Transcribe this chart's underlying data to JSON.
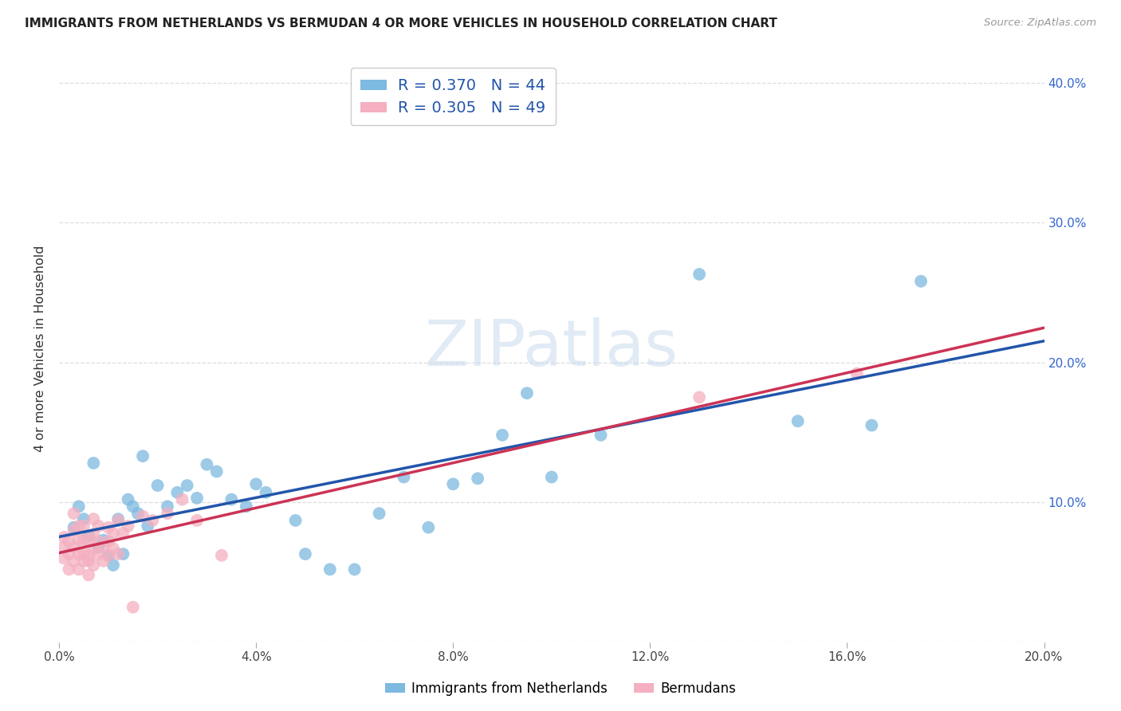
{
  "title": "IMMIGRANTS FROM NETHERLANDS VS BERMUDAN 4 OR MORE VEHICLES IN HOUSEHOLD CORRELATION CHART",
  "source": "Source: ZipAtlas.com",
  "ylabel": "4 or more Vehicles in Household",
  "xlim": [
    0.0,
    0.2
  ],
  "ylim": [
    0.0,
    0.42
  ],
  "xticks": [
    0.0,
    0.04,
    0.08,
    0.12,
    0.16,
    0.2
  ],
  "yticks": [
    0.0,
    0.1,
    0.2,
    0.3,
    0.4
  ],
  "xtick_labels": [
    "0.0%",
    "4.0%",
    "8.0%",
    "12.0%",
    "16.0%",
    "20.0%"
  ],
  "ytick_labels_right": [
    "",
    "10.0%",
    "20.0%",
    "30.0%",
    "40.0%"
  ],
  "blue_color": "#7db9e0",
  "pink_color": "#f4afc0",
  "blue_line_color": "#2255aa",
  "pink_line_color": "#cc3355",
  "blue_scatter_x": [
    0.003,
    0.004,
    0.005,
    0.006,
    0.007,
    0.008,
    0.009,
    0.01,
    0.011,
    0.012,
    0.013,
    0.014,
    0.015,
    0.016,
    0.017,
    0.018,
    0.02,
    0.022,
    0.024,
    0.026,
    0.028,
    0.03,
    0.032,
    0.035,
    0.038,
    0.04,
    0.042,
    0.048,
    0.05,
    0.055,
    0.06,
    0.065,
    0.07,
    0.075,
    0.08,
    0.085,
    0.09,
    0.095,
    0.1,
    0.11,
    0.13,
    0.15,
    0.165,
    0.175
  ],
  "blue_scatter_y": [
    0.082,
    0.097,
    0.088,
    0.076,
    0.128,
    0.068,
    0.073,
    0.062,
    0.055,
    0.088,
    0.063,
    0.102,
    0.097,
    0.092,
    0.133,
    0.083,
    0.112,
    0.097,
    0.107,
    0.112,
    0.103,
    0.127,
    0.122,
    0.102,
    0.097,
    0.113,
    0.107,
    0.087,
    0.063,
    0.052,
    0.052,
    0.092,
    0.118,
    0.082,
    0.113,
    0.117,
    0.148,
    0.178,
    0.118,
    0.148,
    0.263,
    0.158,
    0.155,
    0.258
  ],
  "pink_scatter_x": [
    0.001,
    0.001,
    0.001,
    0.002,
    0.002,
    0.002,
    0.003,
    0.003,
    0.003,
    0.003,
    0.004,
    0.004,
    0.004,
    0.004,
    0.005,
    0.005,
    0.005,
    0.005,
    0.006,
    0.006,
    0.006,
    0.006,
    0.007,
    0.007,
    0.007,
    0.007,
    0.008,
    0.008,
    0.008,
    0.009,
    0.009,
    0.01,
    0.01,
    0.01,
    0.011,
    0.011,
    0.012,
    0.012,
    0.013,
    0.014,
    0.015,
    0.017,
    0.019,
    0.022,
    0.025,
    0.028,
    0.033,
    0.13,
    0.162
  ],
  "pink_scatter_y": [
    0.068,
    0.075,
    0.06,
    0.052,
    0.063,
    0.072,
    0.058,
    0.068,
    0.08,
    0.092,
    0.052,
    0.063,
    0.073,
    0.083,
    0.058,
    0.063,
    0.073,
    0.083,
    0.048,
    0.058,
    0.073,
    0.062,
    0.055,
    0.067,
    0.077,
    0.088,
    0.063,
    0.072,
    0.083,
    0.058,
    0.068,
    0.062,
    0.072,
    0.082,
    0.067,
    0.078,
    0.063,
    0.087,
    0.078,
    0.083,
    0.025,
    0.09,
    0.087,
    0.092,
    0.102,
    0.087,
    0.062,
    0.175,
    0.192
  ],
  "background_color": "#ffffff",
  "grid_color": "#dddddd"
}
